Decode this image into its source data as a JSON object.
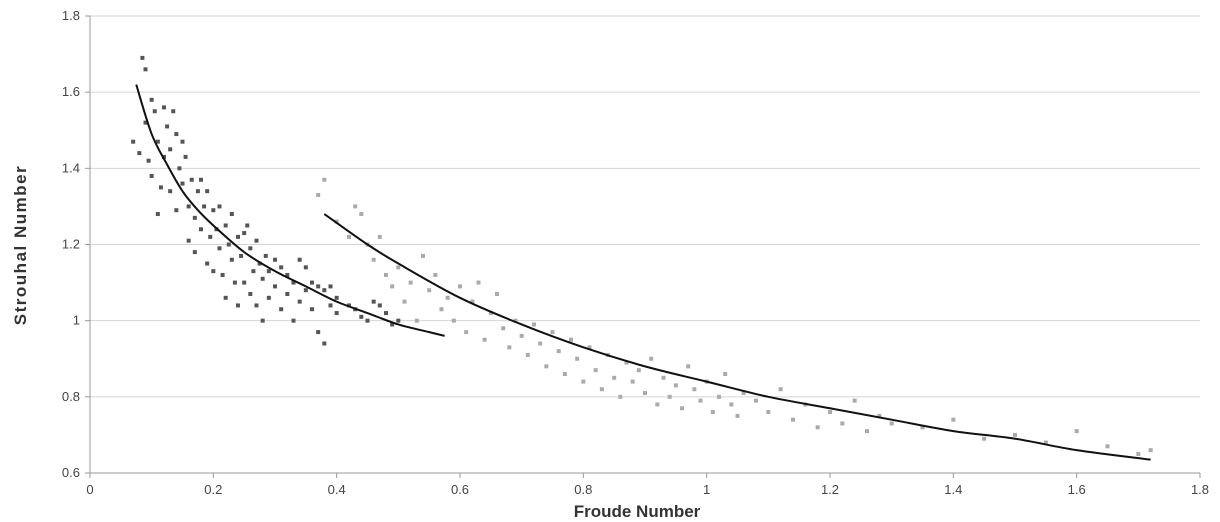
{
  "chart_data": {
    "type": "scatter",
    "title": "",
    "xlabel": "Froude Number",
    "ylabel": "Strouhal   Number",
    "xlim": [
      0,
      1.8
    ],
    "ylim": [
      0.6,
      1.8
    ],
    "x_ticks": [
      "0",
      "0.2",
      "0.4",
      "0.6",
      "0.8",
      "1",
      "1.2",
      "1.4",
      "1.6",
      "1.8"
    ],
    "x_tick_values": [
      0,
      0.2,
      0.4,
      0.6,
      0.8,
      1.0,
      1.2,
      1.4,
      1.6,
      1.8
    ],
    "y_ticks": [
      "0.6",
      "0.8",
      "1",
      "1.2",
      "1.4",
      "1.6",
      "1.8"
    ],
    "y_tick_values": [
      0.6,
      0.8,
      1.0,
      1.2,
      1.4,
      1.6,
      1.8
    ],
    "grid": "horizontal",
    "legend": "none",
    "series": [
      {
        "marker": "dark-square",
        "color": "#555555",
        "x": [
          0.07,
          0.08,
          0.085,
          0.09,
          0.09,
          0.095,
          0.1,
          0.1,
          0.105,
          0.11,
          0.11,
          0.115,
          0.12,
          0.12,
          0.125,
          0.13,
          0.13,
          0.135,
          0.14,
          0.14,
          0.145,
          0.15,
          0.15,
          0.155,
          0.16,
          0.16,
          0.165,
          0.17,
          0.17,
          0.175,
          0.18,
          0.18,
          0.185,
          0.19,
          0.19,
          0.195,
          0.2,
          0.2,
          0.205,
          0.21,
          0.21,
          0.215,
          0.22,
          0.22,
          0.225,
          0.23,
          0.23,
          0.235,
          0.24,
          0.24,
          0.245,
          0.25,
          0.25,
          0.255,
          0.26,
          0.26,
          0.265,
          0.27,
          0.27,
          0.275,
          0.28,
          0.28,
          0.285,
          0.29,
          0.29,
          0.3,
          0.3,
          0.31,
          0.31,
          0.32,
          0.32,
          0.33,
          0.33,
          0.34,
          0.34,
          0.35,
          0.35,
          0.36,
          0.36,
          0.37,
          0.37,
          0.38,
          0.38,
          0.39,
          0.39,
          0.4,
          0.4,
          0.42,
          0.43,
          0.44,
          0.45,
          0.46,
          0.47,
          0.48,
          0.49,
          0.5
        ],
        "y": [
          1.47,
          1.44,
          1.69,
          1.66,
          1.52,
          1.42,
          1.58,
          1.38,
          1.55,
          1.28,
          1.47,
          1.35,
          1.56,
          1.43,
          1.51,
          1.34,
          1.45,
          1.55,
          1.29,
          1.49,
          1.4,
          1.47,
          1.36,
          1.43,
          1.21,
          1.3,
          1.37,
          1.18,
          1.27,
          1.34,
          1.24,
          1.37,
          1.3,
          1.15,
          1.34,
          1.22,
          1.29,
          1.13,
          1.24,
          1.19,
          1.3,
          1.12,
          1.25,
          1.06,
          1.2,
          1.16,
          1.28,
          1.1,
          1.22,
          1.04,
          1.17,
          1.23,
          1.1,
          1.25,
          1.07,
          1.19,
          1.13,
          1.21,
          1.04,
          1.15,
          1.0,
          1.11,
          1.17,
          1.06,
          1.13,
          1.09,
          1.16,
          1.03,
          1.14,
          1.07,
          1.12,
          1.0,
          1.1,
          1.05,
          1.16,
          1.08,
          1.14,
          1.03,
          1.1,
          0.97,
          1.09,
          0.94,
          1.08,
          1.04,
          1.09,
          1.06,
          1.02,
          1.04,
          1.03,
          1.01,
          1.0,
          1.05,
          1.04,
          1.02,
          0.99,
          1.0
        ]
      },
      {
        "marker": "light-square",
        "color": "#aaaaaa",
        "x": [
          0.37,
          0.38,
          0.4,
          0.42,
          0.43,
          0.44,
          0.45,
          0.46,
          0.47,
          0.48,
          0.49,
          0.5,
          0.51,
          0.52,
          0.53,
          0.54,
          0.55,
          0.56,
          0.57,
          0.58,
          0.59,
          0.6,
          0.61,
          0.62,
          0.63,
          0.64,
          0.65,
          0.66,
          0.67,
          0.68,
          0.69,
          0.7,
          0.71,
          0.72,
          0.73,
          0.74,
          0.75,
          0.76,
          0.77,
          0.78,
          0.79,
          0.8,
          0.81,
          0.82,
          0.83,
          0.84,
          0.85,
          0.86,
          0.87,
          0.88,
          0.89,
          0.9,
          0.91,
          0.92,
          0.93,
          0.94,
          0.95,
          0.96,
          0.97,
          0.98,
          0.99,
          1.0,
          1.01,
          1.02,
          1.03,
          1.04,
          1.05,
          1.06,
          1.08,
          1.1,
          1.12,
          1.14,
          1.16,
          1.18,
          1.2,
          1.22,
          1.24,
          1.26,
          1.28,
          1.3,
          1.35,
          1.4,
          1.45,
          1.5,
          1.55,
          1.6,
          1.65,
          1.7,
          1.72
        ],
        "y": [
          1.33,
          1.37,
          1.26,
          1.22,
          1.3,
          1.28,
          1.2,
          1.16,
          1.22,
          1.12,
          1.09,
          1.14,
          1.05,
          1.1,
          1.0,
          1.17,
          1.08,
          1.12,
          1.03,
          1.06,
          1.0,
          1.09,
          0.97,
          1.05,
          1.1,
          0.95,
          1.02,
          1.07,
          0.98,
          0.93,
          1.0,
          0.96,
          0.91,
          0.99,
          0.94,
          0.88,
          0.97,
          0.92,
          0.86,
          0.95,
          0.9,
          0.84,
          0.93,
          0.87,
          0.82,
          0.91,
          0.85,
          0.8,
          0.89,
          0.84,
          0.87,
          0.81,
          0.9,
          0.78,
          0.85,
          0.8,
          0.83,
          0.77,
          0.88,
          0.82,
          0.79,
          0.84,
          0.76,
          0.8,
          0.86,
          0.78,
          0.75,
          0.81,
          0.79,
          0.76,
          0.82,
          0.74,
          0.78,
          0.72,
          0.76,
          0.73,
          0.79,
          0.71,
          0.75,
          0.73,
          0.72,
          0.74,
          0.69,
          0.7,
          0.68,
          0.71,
          0.67,
          0.65,
          0.66
        ]
      }
    ],
    "trend_lines": [
      {
        "color": "#111111",
        "x": [
          0.075,
          0.1,
          0.125,
          0.15,
          0.175,
          0.2,
          0.25,
          0.3,
          0.35,
          0.4,
          0.45,
          0.5,
          0.55,
          0.575
        ],
        "y": [
          1.62,
          1.49,
          1.41,
          1.34,
          1.29,
          1.25,
          1.18,
          1.13,
          1.09,
          1.05,
          1.02,
          0.99,
          0.97,
          0.96
        ]
      },
      {
        "color": "#111111",
        "x": [
          0.38,
          0.45,
          0.5,
          0.6,
          0.7,
          0.8,
          0.9,
          1.0,
          1.1,
          1.2,
          1.3,
          1.4,
          1.5,
          1.6,
          1.72
        ],
        "y": [
          1.28,
          1.2,
          1.15,
          1.06,
          0.99,
          0.93,
          0.88,
          0.84,
          0.8,
          0.77,
          0.74,
          0.71,
          0.69,
          0.66,
          0.635
        ]
      }
    ]
  }
}
